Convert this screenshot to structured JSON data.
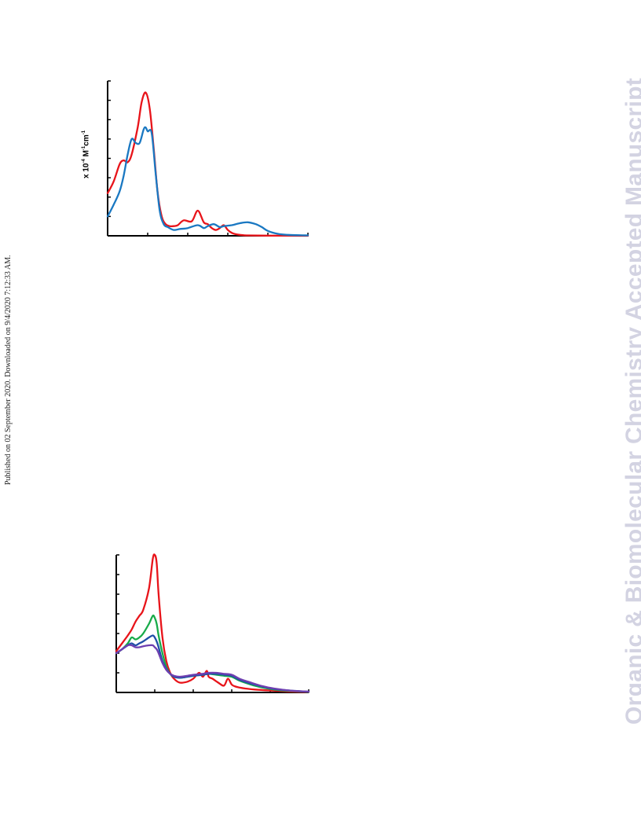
{
  "watermark": "Organic & Biomolecular Chemistry Accepted Manuscript",
  "publication_stamp": "Published on 02 September 2020. Downloaded on 9/4/2020 7:12:33 AM.",
  "chart_data": [
    {
      "type": "line",
      "ylabel": {
        "prefix": "x 10",
        "exp1": "-4",
        "mid": " M",
        "exp2": "-1",
        "unit": "cm",
        "exp3": "-1"
      },
      "xlim": [
        0,
        100
      ],
      "ylim": [
        0,
        8
      ],
      "ytick_count": 8,
      "xtick_count": 5,
      "grid": false,
      "series": [
        {
          "color": "#e8141a",
          "x": [
            0,
            3,
            6,
            8,
            10,
            12,
            15,
            17,
            19,
            21,
            23,
            25,
            27,
            29,
            31,
            33,
            35,
            38,
            42,
            45,
            48,
            50,
            52,
            54,
            56,
            58,
            60,
            62,
            64,
            66,
            68,
            70,
            80,
            100
          ],
          "y": [
            2.2,
            2.8,
            3.7,
            3.9,
            3.8,
            4.2,
            5.6,
            6.9,
            7.4,
            6.6,
            4.5,
            2.2,
            1.0,
            0.6,
            0.5,
            0.5,
            0.55,
            0.8,
            0.75,
            1.3,
            0.7,
            0.6,
            0.4,
            0.3,
            0.4,
            0.55,
            0.3,
            0.15,
            0.08,
            0.05,
            0.03,
            0.02,
            0.01,
            0.0
          ]
        },
        {
          "color": "#1a78c2",
          "x": [
            0,
            3,
            6,
            8,
            10,
            12,
            14,
            16,
            18,
            19,
            20,
            22,
            24,
            26,
            28,
            30,
            33,
            36,
            40,
            45,
            48,
            50,
            53,
            56,
            58,
            62,
            66,
            70,
            74,
            77,
            80,
            85,
            90,
            100
          ],
          "y": [
            1.0,
            1.6,
            2.3,
            3.1,
            4.2,
            5.0,
            4.8,
            4.8,
            5.5,
            5.6,
            5.4,
            5.3,
            3.2,
            1.3,
            0.6,
            0.45,
            0.3,
            0.35,
            0.4,
            0.55,
            0.4,
            0.5,
            0.6,
            0.45,
            0.5,
            0.55,
            0.65,
            0.7,
            0.6,
            0.45,
            0.25,
            0.1,
            0.05,
            0.02
          ]
        }
      ]
    },
    {
      "type": "line",
      "xlim": [
        0,
        100
      ],
      "ylim": [
        0,
        7
      ],
      "ytick_count": 7,
      "xtick_count": 5,
      "grid": false,
      "series": [
        {
          "color": "#e8141a",
          "x": [
            0,
            3,
            6,
            8,
            10,
            12,
            14,
            17,
            19,
            20,
            21,
            22,
            24,
            26,
            28,
            30,
            33,
            37,
            40,
            43,
            45,
            47,
            48,
            50,
            53,
            56,
            58,
            60,
            62,
            64,
            67,
            72,
            80,
            90,
            100
          ],
          "y": [
            2.1,
            2.5,
            2.9,
            3.2,
            3.6,
            3.9,
            4.2,
            5.3,
            6.8,
            7.0,
            6.6,
            5.0,
            2.8,
            1.6,
            1.0,
            0.7,
            0.5,
            0.55,
            0.7,
            1.0,
            0.8,
            1.1,
            0.8,
            0.7,
            0.5,
            0.35,
            0.7,
            0.4,
            0.3,
            0.25,
            0.2,
            0.15,
            0.1,
            0.05,
            0.02
          ]
        },
        {
          "color": "#18ab4a",
          "x": [
            0,
            3,
            6,
            8,
            10,
            12,
            14,
            17,
            19,
            20,
            21,
            22,
            24,
            26,
            28,
            30,
            33,
            37,
            40,
            45,
            48,
            52,
            56,
            60,
            64,
            70,
            76,
            82,
            90,
            100
          ],
          "y": [
            2.0,
            2.2,
            2.5,
            2.8,
            2.7,
            2.8,
            3.0,
            3.5,
            3.9,
            3.8,
            3.5,
            2.9,
            2.0,
            1.3,
            0.95,
            0.8,
            0.75,
            0.8,
            0.85,
            0.9,
            0.95,
            0.9,
            0.85,
            0.8,
            0.6,
            0.4,
            0.25,
            0.15,
            0.08,
            0.03
          ]
        },
        {
          "color": "#1f4fa8",
          "x": [
            0,
            3,
            6,
            8,
            10,
            12,
            14,
            17,
            19,
            20,
            21,
            22,
            24,
            26,
            28,
            30,
            33,
            37,
            40,
            45,
            48,
            52,
            56,
            60,
            64,
            70,
            76,
            82,
            90,
            100
          ],
          "y": [
            2.0,
            2.2,
            2.4,
            2.5,
            2.4,
            2.5,
            2.6,
            2.8,
            2.9,
            2.8,
            2.6,
            2.3,
            1.6,
            1.2,
            0.95,
            0.8,
            0.75,
            0.8,
            0.85,
            0.9,
            0.95,
            0.95,
            0.9,
            0.85,
            0.65,
            0.45,
            0.3,
            0.18,
            0.1,
            0.04
          ]
        },
        {
          "color": "#6e3fb0",
          "x": [
            0,
            3,
            6,
            8,
            10,
            12,
            14,
            17,
            19,
            20,
            21,
            22,
            24,
            26,
            28,
            30,
            33,
            37,
            40,
            45,
            48,
            52,
            56,
            60,
            64,
            70,
            76,
            82,
            90,
            100
          ],
          "y": [
            2.0,
            2.2,
            2.4,
            2.4,
            2.3,
            2.3,
            2.35,
            2.4,
            2.4,
            2.3,
            2.2,
            2.0,
            1.5,
            1.15,
            0.95,
            0.85,
            0.8,
            0.85,
            0.9,
            0.95,
            1.0,
            1.0,
            0.95,
            0.9,
            0.7,
            0.5,
            0.32,
            0.2,
            0.1,
            0.04
          ]
        }
      ]
    }
  ]
}
